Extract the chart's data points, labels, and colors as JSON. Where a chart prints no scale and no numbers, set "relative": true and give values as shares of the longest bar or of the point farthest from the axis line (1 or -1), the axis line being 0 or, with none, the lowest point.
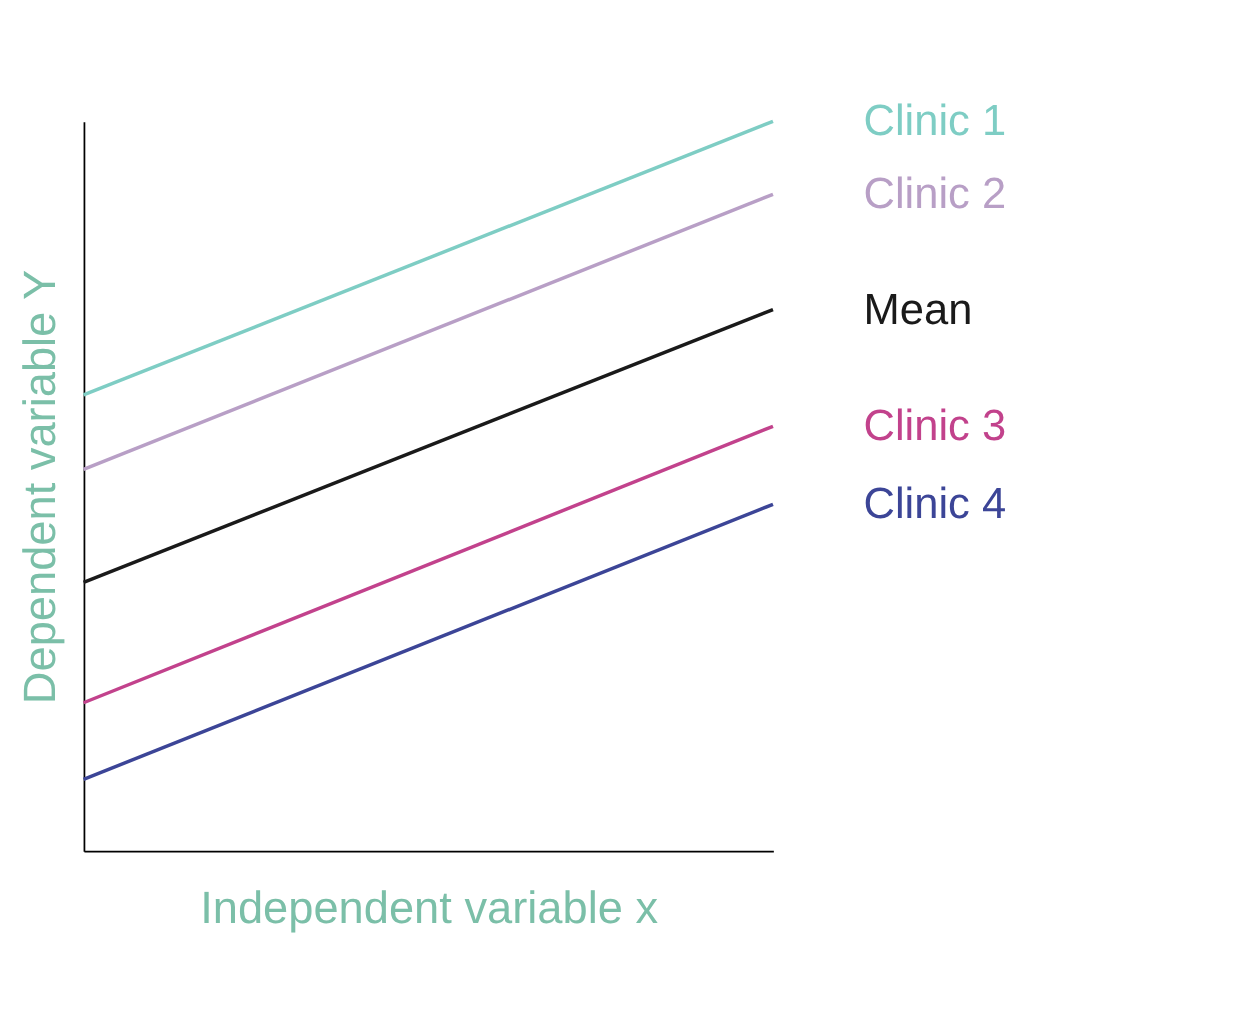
{
  "chart_data": {
    "type": "line",
    "relative": true,
    "xlabel": "Independent variable x",
    "ylabel": "Dependent variable Y",
    "categories": [
      null,
      null
    ],
    "legend": false,
    "grid": false,
    "marker": "none",
    "line_style": "solid",
    "series": [
      {
        "name": "Clinic 1",
        "color": "#7ecdc4",
        "values": [
          0.625,
          1
        ]
      },
      {
        "name": "Clinic 2",
        "color": "#b89fc6",
        "values": [
          0.523,
          0.9
        ]
      },
      {
        "name": "Mean",
        "color": "#1a1a1a",
        "values": [
          0.368,
          0.742
        ]
      },
      {
        "name": "Clinic 3",
        "color": "#c2428c",
        "values": [
          0.203,
          0.582
        ]
      },
      {
        "name": "Clinic 4",
        "color": "#3c4597",
        "values": [
          0.098,
          0.475
        ]
      }
    ]
  }
}
